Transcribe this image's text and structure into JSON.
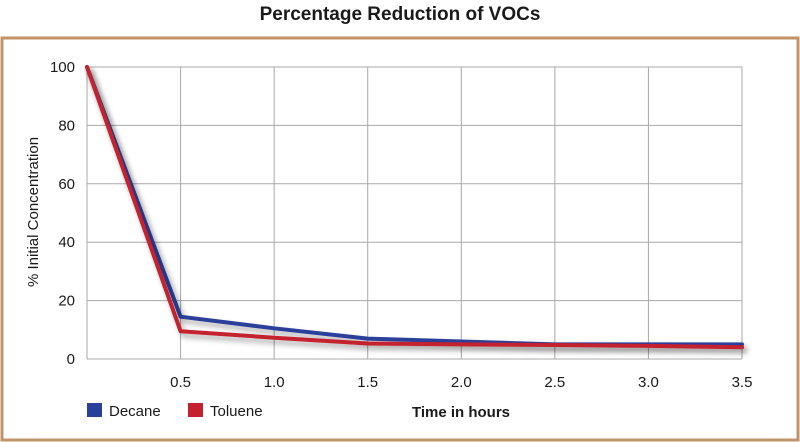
{
  "chart_data": {
    "type": "line",
    "title": "Percentage Reduction of VOCs",
    "xlabel": "Time in hours",
    "ylabel": "% Initial Concentration",
    "xlim": [
      0,
      3.5
    ],
    "ylim": [
      0,
      100
    ],
    "xticks": [
      0.5,
      1.0,
      1.5,
      2.0,
      2.5,
      3.0,
      3.5
    ],
    "xtick_labels": [
      "0.5",
      "1.0",
      "1.5",
      "2.0",
      "2.5",
      "3.0",
      "3.5"
    ],
    "yticks": [
      0,
      20,
      40,
      60,
      80,
      100
    ],
    "ytick_labels": [
      "0",
      "20",
      "40",
      "60",
      "80",
      "100"
    ],
    "grid": true,
    "legend_position": "bottom-left",
    "x": [
      0,
      0.5,
      1.0,
      1.5,
      2.0,
      2.5,
      3.0,
      3.5
    ],
    "series": [
      {
        "name": "Decane",
        "color": "#2a3f9a",
        "values": [
          100,
          14.5,
          10.5,
          7,
          6,
          5,
          5,
          5
        ]
      },
      {
        "name": "Toluene",
        "color": "#c4202f",
        "values": [
          100,
          9.5,
          7.3,
          5.3,
          5,
          4.8,
          4.5,
          4
        ]
      }
    ],
    "frame_color": "#c0936a"
  }
}
